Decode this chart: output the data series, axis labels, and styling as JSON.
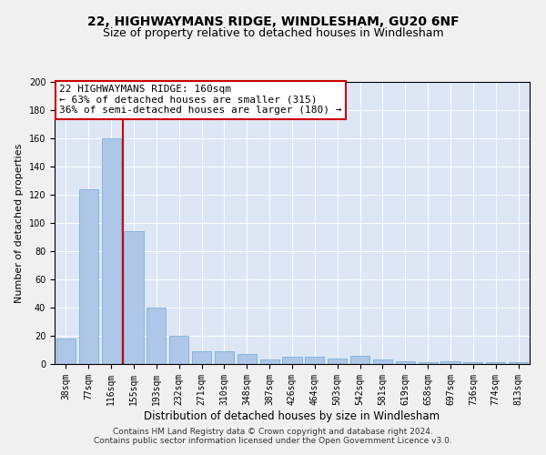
{
  "title1": "22, HIGHWAYMANS RIDGE, WINDLESHAM, GU20 6NF",
  "title2": "Size of property relative to detached houses in Windlesham",
  "xlabel": "Distribution of detached houses by size in Windlesham",
  "ylabel": "Number of detached properties",
  "categories": [
    "38sqm",
    "77sqm",
    "116sqm",
    "155sqm",
    "193sqm",
    "232sqm",
    "271sqm",
    "310sqm",
    "348sqm",
    "387sqm",
    "426sqm",
    "464sqm",
    "503sqm",
    "542sqm",
    "581sqm",
    "619sqm",
    "658sqm",
    "697sqm",
    "736sqm",
    "774sqm",
    "813sqm"
  ],
  "values": [
    18,
    124,
    160,
    94,
    40,
    20,
    9,
    9,
    7,
    3,
    5,
    5,
    4,
    6,
    3,
    2,
    1,
    2,
    1,
    1,
    1
  ],
  "bar_color": "#aec6e8",
  "bar_edge_color": "#6aaad4",
  "vline_color": "#cc0000",
  "vline_x_index": 2,
  "annotation_text": "22 HIGHWAYMANS RIDGE: 160sqm\n← 63% of detached houses are smaller (315)\n36% of semi-detached houses are larger (180) →",
  "annotation_box_color": "#ffffff",
  "annotation_box_edge_color": "#cc0000",
  "ylim": [
    0,
    200
  ],
  "yticks": [
    0,
    20,
    40,
    60,
    80,
    100,
    120,
    140,
    160,
    180,
    200
  ],
  "footer1": "Contains HM Land Registry data © Crown copyright and database right 2024.",
  "footer2": "Contains public sector information licensed under the Open Government Licence v3.0.",
  "bg_color": "#dce6f5",
  "plot_bg_color": "#dce6f5",
  "fig_bg_color": "#f0f0f0",
  "title1_fontsize": 10,
  "title2_fontsize": 9,
  "xlabel_fontsize": 8.5,
  "ylabel_fontsize": 8,
  "tick_fontsize": 7,
  "annotation_fontsize": 8,
  "footer_fontsize": 6.5
}
